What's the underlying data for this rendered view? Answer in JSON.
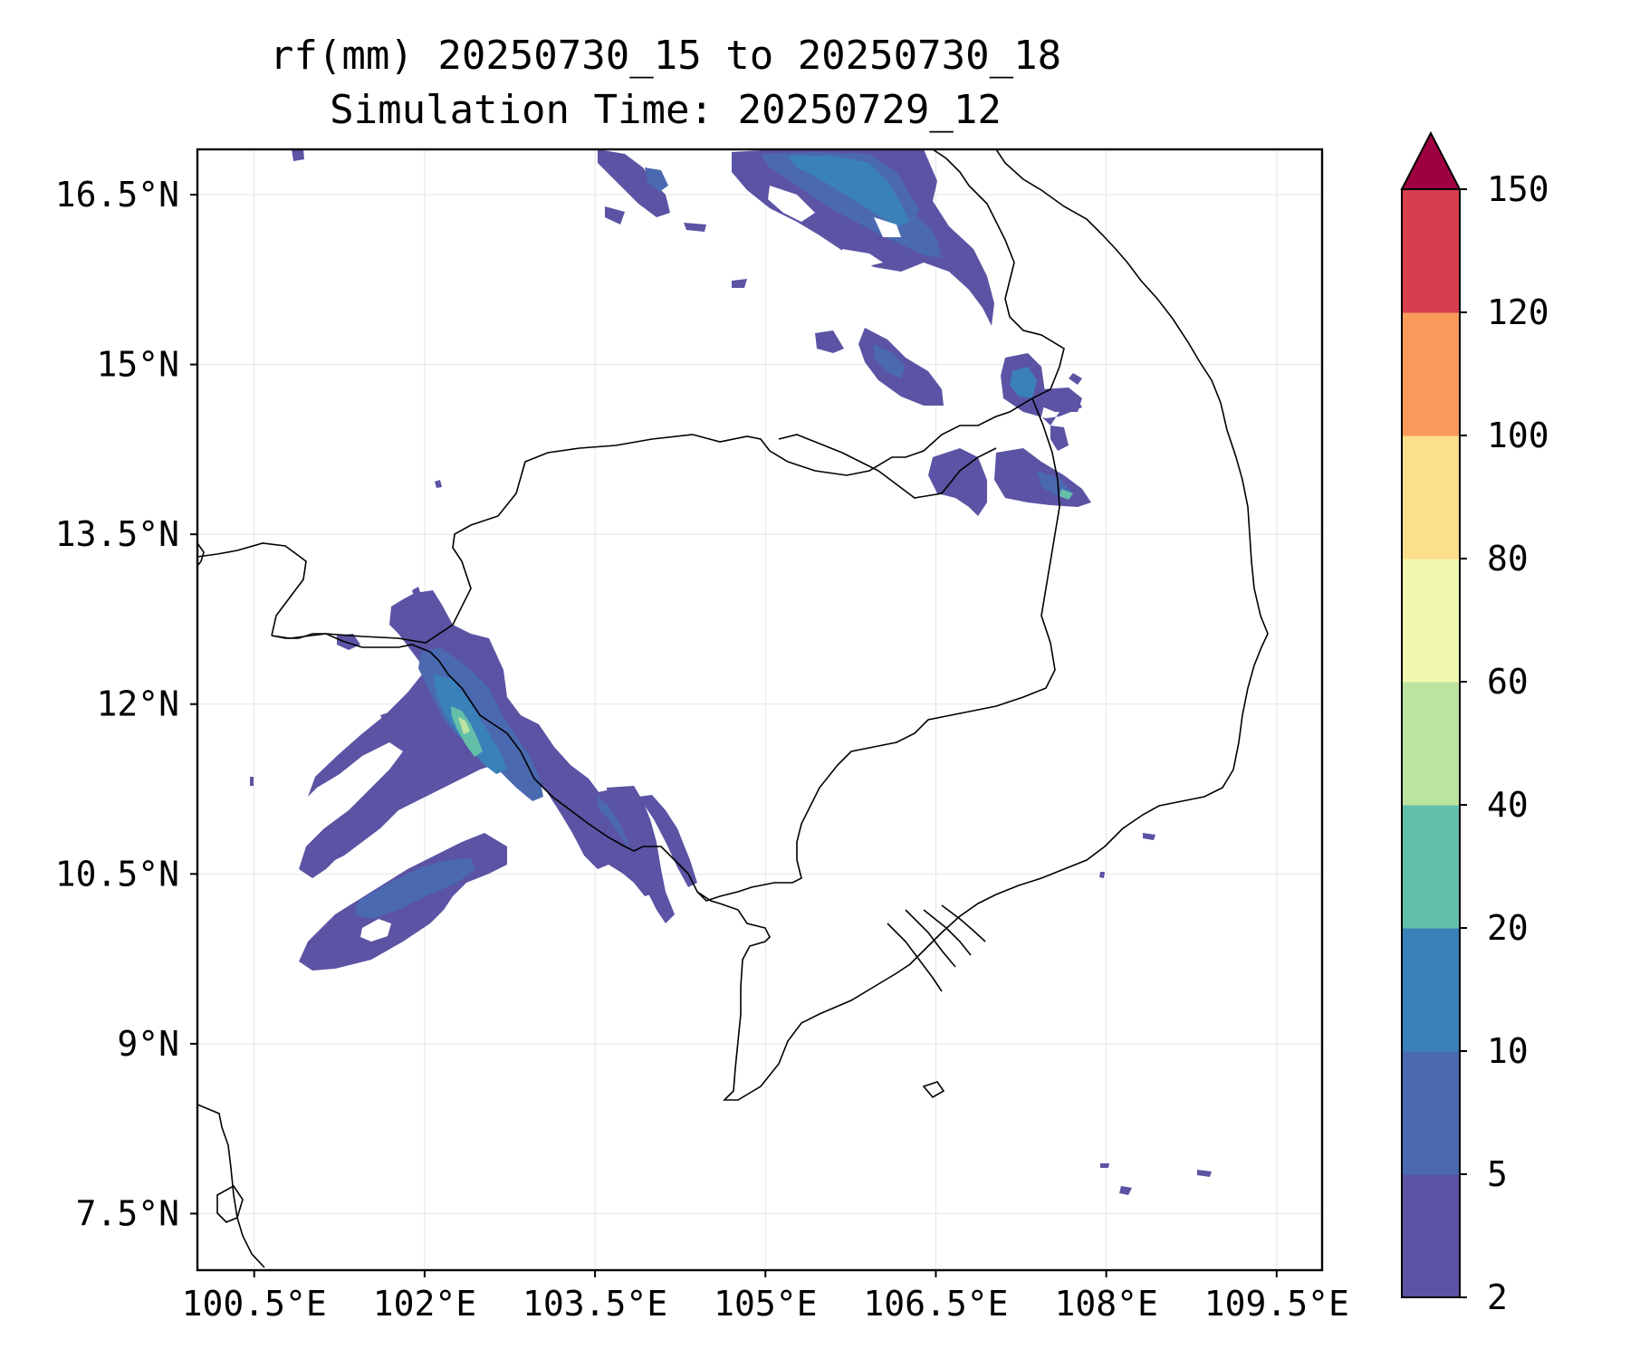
{
  "title": {
    "line1": "rf(mm) 20250730_15 to 20250730_18",
    "line2": "Simulation Time: 20250729_12"
  },
  "map": {
    "lon_range": [
      100.0,
      109.9
    ],
    "lat_range": [
      7.0,
      16.9
    ],
    "lon_ticks": [
      {
        "value": 100.5,
        "label": "100.5°E"
      },
      {
        "value": 102.0,
        "label": "102°E"
      },
      {
        "value": 103.5,
        "label": "103.5°E"
      },
      {
        "value": 105.0,
        "label": "105°E"
      },
      {
        "value": 106.5,
        "label": "106.5°E"
      },
      {
        "value": 108.0,
        "label": "108°E"
      },
      {
        "value": 109.5,
        "label": "109.5°E"
      }
    ],
    "lat_ticks": [
      {
        "value": 7.5,
        "label": "7.5°N"
      },
      {
        "value": 9.0,
        "label": "9°N"
      },
      {
        "value": 10.5,
        "label": "10.5°N"
      },
      {
        "value": 12.0,
        "label": "12°N"
      },
      {
        "value": 13.5,
        "label": "13.5°N"
      },
      {
        "value": 15.0,
        "label": "15°N"
      },
      {
        "value": 16.5,
        "label": "16.5°N"
      }
    ],
    "gridlines": true
  },
  "colorbar": {
    "levels": [
      "2",
      "5",
      "10",
      "20",
      "40",
      "60",
      "80",
      "100",
      "120",
      "150"
    ],
    "colors": [
      "#5b53a4",
      "#4a69b1",
      "#3a80b9",
      "#64bfa9",
      "#bce3a0",
      "#f2f8af",
      "#fbdf8a",
      "#f9995a",
      "#d63f4f",
      "#9e0142"
    ],
    "extend": "max"
  }
}
